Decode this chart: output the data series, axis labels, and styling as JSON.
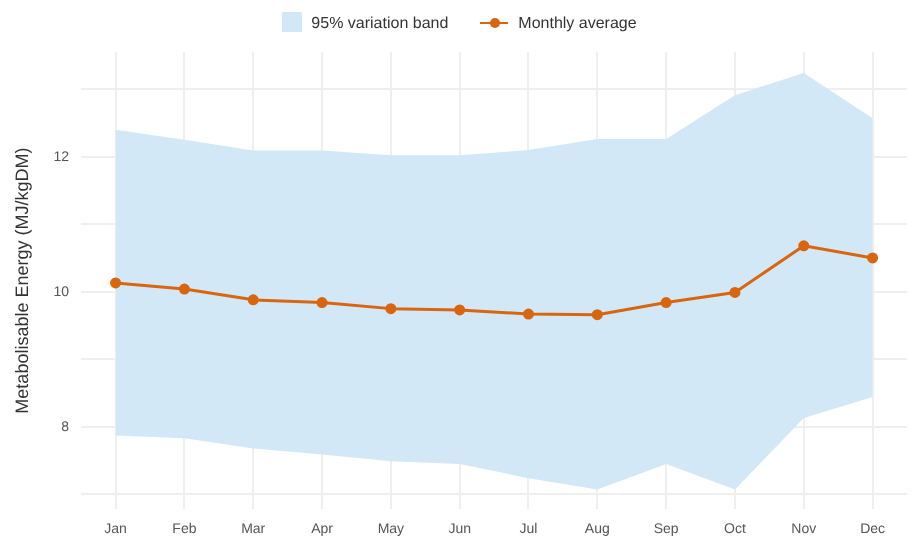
{
  "chart_data": {
    "type": "line",
    "ylabel": "Metabolisable Energy (MJ/kgDM)",
    "categories": [
      "Jan",
      "Feb",
      "Mar",
      "Apr",
      "May",
      "Jun",
      "Jul",
      "Aug",
      "Sep",
      "Oct",
      "Nov",
      "Dec"
    ],
    "series": [
      {
        "name": "Monthly average",
        "type": "line",
        "color": "#d9650f",
        "values": [
          10.13,
          10.04,
          9.88,
          9.84,
          9.75,
          9.73,
          9.67,
          9.66,
          9.84,
          9.99,
          10.68,
          10.5
        ],
        "lower": [
          7.87,
          7.83,
          7.68,
          7.59,
          7.49,
          7.45,
          7.24,
          7.07,
          7.45,
          7.07,
          8.13,
          8.44
        ],
        "upper": [
          12.4,
          12.25,
          12.09,
          12.09,
          12.02,
          12.02,
          12.1,
          12.26,
          12.26,
          12.91,
          13.24,
          12.57
        ]
      }
    ],
    "ylim": [
      6.78,
      13.55
    ],
    "yticks": [
      {
        "value": 7,
        "label": null
      },
      8,
      {
        "value": 9,
        "label": null
      },
      10,
      {
        "value": 11,
        "label": null
      },
      12,
      {
        "value": 13,
        "label": null
      }
    ],
    "annotations": [
      "95% variation band"
    ],
    "grid": true,
    "legend": "top",
    "marker": "circle",
    "line_style": "solid"
  }
}
